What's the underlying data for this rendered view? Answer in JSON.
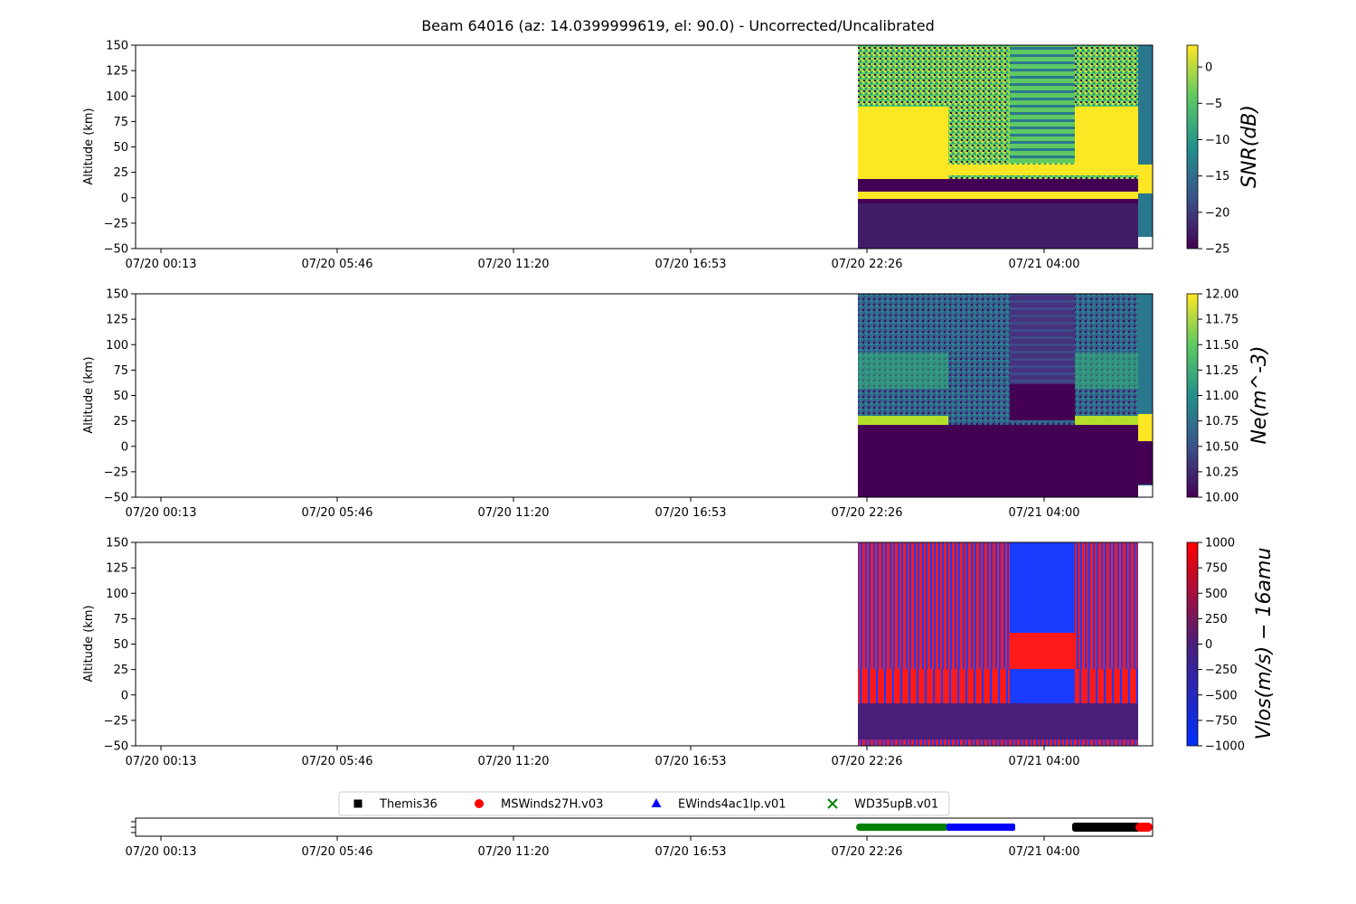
{
  "title": "Beam 64016 (az: 14.0399999619, el: 90.0) - Uncorrected/Uncalibrated",
  "chart_data": [
    {
      "type": "heatmap",
      "name": "snr",
      "ylabel": "Altitude (km)",
      "ylim": [
        -50,
        150
      ],
      "yticks": [
        -50,
        -25,
        0,
        25,
        50,
        75,
        100,
        125,
        150
      ],
      "xtick_labels": [
        "07/20 00:13",
        "07/20 05:46",
        "07/20 11:20",
        "07/20 16:53",
        "07/20 22:26",
        "07/21 04:00"
      ],
      "colorbar": {
        "label": "SNR(dB)",
        "range": [
          -25,
          3
        ],
        "ticks": [
          0,
          -5,
          -10,
          -15,
          -20,
          -25
        ],
        "colormap": "viridis"
      }
    },
    {
      "type": "heatmap",
      "name": "ne",
      "ylabel": "Altitude (km)",
      "ylim": [
        -50,
        150
      ],
      "yticks": [
        -50,
        -25,
        0,
        25,
        50,
        75,
        100,
        125,
        150
      ],
      "xtick_labels": [
        "07/20 00:13",
        "07/20 05:46",
        "07/20 11:20",
        "07/20 16:53",
        "07/20 22:26",
        "07/21 04:00"
      ],
      "colorbar": {
        "label": "Ne(m^-3)",
        "range": [
          10.0,
          12.0
        ],
        "ticks": [
          "12.00",
          "11.75",
          "11.50",
          "11.25",
          "11.00",
          "10.75",
          "10.50",
          "10.25",
          "10.00"
        ],
        "colormap": "viridis"
      }
    },
    {
      "type": "heatmap",
      "name": "vlos",
      "ylabel": "Altitude (km)",
      "ylim": [
        -50,
        150
      ],
      "yticks": [
        -50,
        -25,
        0,
        25,
        50,
        75,
        100,
        125,
        150
      ],
      "xtick_labels": [
        "07/20 00:13",
        "07/20 05:46",
        "07/20 11:20",
        "07/20 16:53",
        "07/20 22:26",
        "07/21 04:00"
      ],
      "colorbar": {
        "label": "Vlos(m/s) − 16amu",
        "range": [
          -1000,
          1000
        ],
        "ticks": [
          "1000",
          "750",
          "500",
          "250",
          "0",
          "−250",
          "−500",
          "−750",
          "−1000"
        ],
        "colormap": "blue-red"
      }
    },
    {
      "type": "scatter",
      "name": "experiments",
      "xtick_labels": [
        "07/20 00:13",
        "07/20 05:46",
        "07/20 11:20",
        "07/20 16:53",
        "07/20 22:26",
        "07/21 04:00"
      ],
      "legend": [
        {
          "label": "Themis36",
          "marker": "square",
          "color": "#000000"
        },
        {
          "label": "MSWinds27H.v03",
          "marker": "circle",
          "color": "#ff0000"
        },
        {
          "label": "EWinds4ac1lp.v01",
          "marker": "triangle",
          "color": "#0000ff"
        },
        {
          "label": "WD35upB.v01",
          "marker": "x",
          "color": "#008000"
        }
      ],
      "legend_position": "top-center"
    }
  ]
}
